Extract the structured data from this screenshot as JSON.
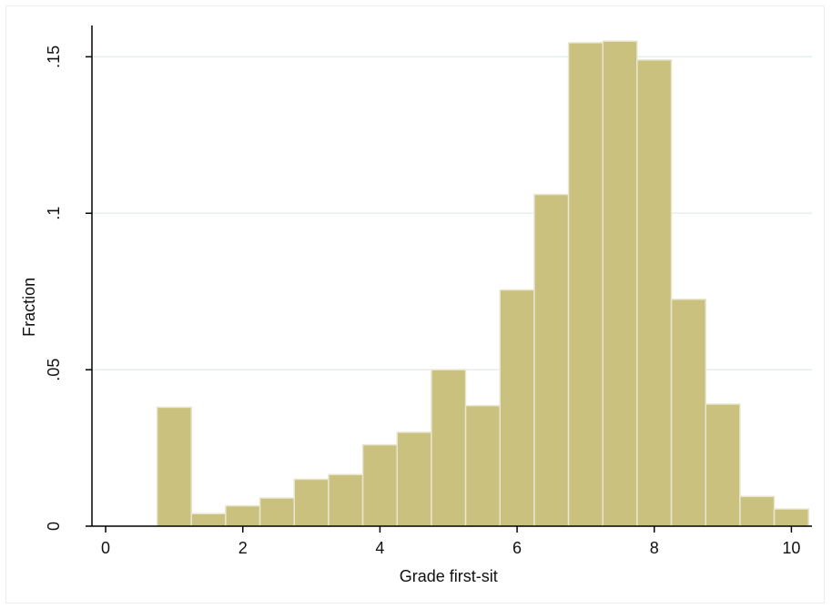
{
  "chart_data": {
    "type": "bar",
    "xlabel": "Grade first-sit",
    "ylabel": "Fraction",
    "xlim": [
      -0.2,
      10.3
    ],
    "ylim": [
      0,
      0.16
    ],
    "x_ticks": [
      0,
      2,
      4,
      6,
      8,
      10
    ],
    "x_tick_labels": [
      "0",
      "2",
      "4",
      "6",
      "8",
      "10"
    ],
    "y_ticks": [
      0,
      0.05,
      0.1,
      0.15
    ],
    "y_tick_labels": [
      "0",
      ".05",
      ".1",
      ".15"
    ],
    "grid": "horizontal",
    "bin_width": 0.5,
    "bins": [
      {
        "start": 0.75,
        "value": 0.038
      },
      {
        "start": 1.25,
        "value": 0.004
      },
      {
        "start": 1.75,
        "value": 0.0065
      },
      {
        "start": 2.25,
        "value": 0.009
      },
      {
        "start": 2.75,
        "value": 0.015
      },
      {
        "start": 3.25,
        "value": 0.0165
      },
      {
        "start": 3.75,
        "value": 0.026
      },
      {
        "start": 4.25,
        "value": 0.03
      },
      {
        "start": 4.75,
        "value": 0.05
      },
      {
        "start": 5.25,
        "value": 0.0385
      },
      {
        "start": 5.75,
        "value": 0.0755
      },
      {
        "start": 6.25,
        "value": 0.106
      },
      {
        "start": 6.75,
        "value": 0.1545
      },
      {
        "start": 7.25,
        "value": 0.155
      },
      {
        "start": 7.75,
        "value": 0.149
      },
      {
        "start": 8.25,
        "value": 0.0725
      },
      {
        "start": 8.75,
        "value": 0.039
      },
      {
        "start": 9.25,
        "value": 0.0095
      },
      {
        "start": 9.75,
        "value": 0.0055
      }
    ],
    "colors": {
      "bar_fill": "#cbc17f",
      "bar_stroke": "#e9e6cf",
      "grid": "#e6eef0",
      "axis": "#000000"
    }
  }
}
